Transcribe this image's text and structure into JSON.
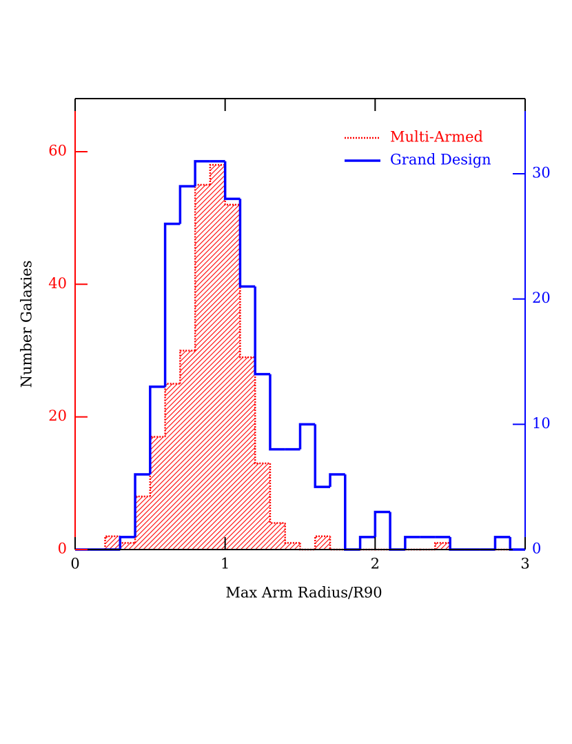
{
  "chart_data": {
    "type": "histogram",
    "xlabel": "Max Arm Radius/R90",
    "ylabel": "Number Galaxies",
    "bins": [
      0,
      0.1,
      0.2,
      0.3,
      0.4,
      0.5,
      0.6,
      0.7,
      0.8,
      0.9,
      1.0,
      1.1,
      1.2,
      1.3,
      1.4,
      1.5,
      1.6,
      1.7,
      1.8,
      1.9,
      2.0,
      2.1,
      2.2,
      2.3,
      2.4,
      2.5,
      2.6,
      2.7,
      2.8,
      2.9,
      3.0
    ],
    "series": [
      {
        "name": "Multi-Armed",
        "color": "#ff0000",
        "values": [
          0,
          0,
          2,
          1,
          8,
          17,
          25,
          30,
          55,
          58,
          52,
          29,
          13,
          4,
          1,
          0,
          2,
          0,
          0,
          0,
          0,
          0,
          0,
          0,
          1,
          0,
          0,
          0,
          0,
          0
        ]
      },
      {
        "name": "Grand Design",
        "color": "#0000ff",
        "axis": "y2",
        "values": [
          0,
          0,
          0,
          1,
          6,
          13,
          26,
          29,
          31,
          31,
          28,
          21,
          14,
          8,
          8,
          10,
          5,
          6,
          0,
          1,
          3,
          0,
          1,
          1,
          1,
          0,
          0,
          0,
          1,
          0
        ]
      }
    ],
    "xlim": [
      0,
      3
    ],
    "xticks": [
      0,
      1,
      2,
      3
    ],
    "ylim": [
      0,
      68
    ],
    "yticks": [
      0,
      20,
      40,
      60
    ],
    "y2lim": [
      0,
      36
    ],
    "y2ticks": [
      0,
      10,
      20,
      30
    ]
  }
}
